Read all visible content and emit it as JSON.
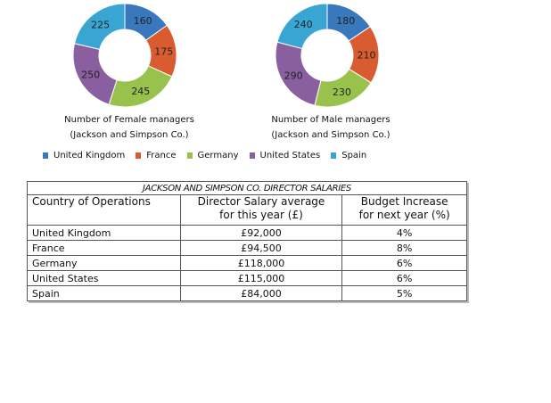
{
  "chart_data": [
    {
      "type": "pie",
      "variant": "donut",
      "title": "Number of Female managers",
      "subtitle": "(Jackson and Simpson Co.)",
      "categories": [
        "United Kingdom",
        "France",
        "Germany",
        "United States",
        "Spain"
      ],
      "values": [
        160,
        175,
        245,
        250,
        225
      ],
      "legend": "bottom"
    },
    {
      "type": "pie",
      "variant": "donut",
      "title": "Number of Male managers",
      "subtitle": "(Jackson and Simpson Co.)",
      "categories": [
        "United Kingdom",
        "France",
        "Germany",
        "United States",
        "Spain"
      ],
      "values": [
        180,
        210,
        230,
        290,
        240
      ],
      "legend": "bottom"
    },
    {
      "type": "table",
      "title": "JACKSON AND SIMPSON CO. DIRECTOR SALARIES",
      "columns": [
        "Country of Operations",
        "Director Salary average for this year (£)",
        "Budget Increase for next year (%)"
      ],
      "rows": [
        [
          "United Kingdom",
          "£92,000",
          "4%"
        ],
        [
          "France",
          "£94,500",
          "8%"
        ],
        [
          "Germany",
          "£118,000",
          "6%"
        ],
        [
          "United States",
          "£115,000",
          "6%"
        ],
        [
          "Spain",
          "£84,000",
          "5%"
        ]
      ]
    }
  ],
  "charts": {
    "female": {
      "title": "Number of Female managers",
      "subtitle": "(Jackson and Simpson Co.)"
    },
    "male": {
      "title": "Number of Male managers",
      "subtitle": "(Jackson and Simpson Co.)"
    }
  },
  "legend": [
    {
      "label": "United Kingdom",
      "color": "#3a78bd"
    },
    {
      "label": "France",
      "color": "#d95b30"
    },
    {
      "label": "Germany",
      "color": "#99c24d"
    },
    {
      "label": "United States",
      "color": "#8a5f9f"
    },
    {
      "label": "Spain",
      "color": "#39a5d3"
    }
  ],
  "table": {
    "title": "JACKSON AND SIMPSON CO. DIRECTOR SALARIES",
    "headers": {
      "country": "Country of Operations",
      "salary_line1": "Director Salary average",
      "salary_line2": "for this year (£)",
      "budget_line1": "Budget Increase",
      "budget_line2": "for next year (%)"
    },
    "rows": [
      {
        "country": "United Kingdom",
        "salary": "£92,000",
        "budget": "4%"
      },
      {
        "country": "France",
        "salary": "£94,500",
        "budget": "8%"
      },
      {
        "country": "Germany",
        "salary": "£118,000",
        "budget": "6%"
      },
      {
        "country": "United States",
        "salary": "£115,000",
        "budget": "6%"
      },
      {
        "country": "Spain",
        "salary": "£84,000",
        "budget": "5%"
      }
    ]
  }
}
